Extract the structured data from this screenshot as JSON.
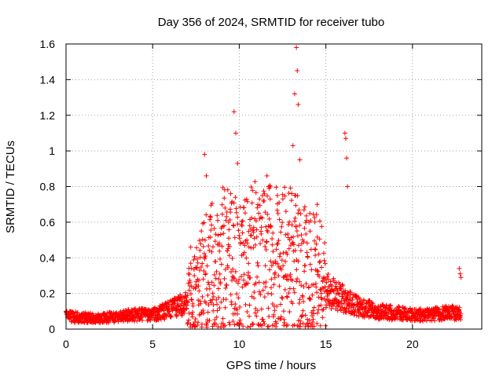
{
  "chart_data": {
    "type": "scatter",
    "title": "Day 356 of 2024, SRMTID for receiver tubo",
    "xlabel": "GPS time / hours",
    "ylabel": "SRMTID / TECUs",
    "xlim": [
      0,
      24
    ],
    "ylim": [
      0,
      1.6
    ],
    "x_ticks": [
      0,
      5,
      10,
      15,
      20
    ],
    "x_tick_labels": [
      "0",
      "5",
      "10",
      "15",
      "20"
    ],
    "y_ticks": [
      0,
      0.2,
      0.4,
      0.6,
      0.8,
      1.0,
      1.2,
      1.4,
      1.6
    ],
    "y_tick_labels": [
      "0",
      "0.2",
      "0.4",
      "0.6",
      "0.8",
      "1",
      "1.2",
      "1.4",
      "1.6"
    ],
    "grid": true,
    "marker": "+",
    "color": "#ff0000",
    "series": [
      {
        "name": "SRMTID",
        "envelope": [
          {
            "x": 0.0,
            "y": 0.07
          },
          {
            "x": 2.0,
            "y": 0.06
          },
          {
            "x": 4.0,
            "y": 0.08
          },
          {
            "x": 5.0,
            "y": 0.08
          },
          {
            "x": 6.0,
            "y": 0.11
          },
          {
            "x": 7.0,
            "y": 0.15
          },
          {
            "x": 7.5,
            "y": 0.22
          },
          {
            "x": 8.0,
            "y": 0.3
          },
          {
            "x": 9.0,
            "y": 0.4
          },
          {
            "x": 10.0,
            "y": 0.35
          },
          {
            "x": 11.0,
            "y": 0.4
          },
          {
            "x": 12.0,
            "y": 0.38
          },
          {
            "x": 13.0,
            "y": 0.38
          },
          {
            "x": 14.0,
            "y": 0.32
          },
          {
            "x": 14.7,
            "y": 0.3
          },
          {
            "x": 15.0,
            "y": 0.22
          },
          {
            "x": 16.0,
            "y": 0.17
          },
          {
            "x": 17.0,
            "y": 0.12
          },
          {
            "x": 18.0,
            "y": 0.1
          },
          {
            "x": 19.0,
            "y": 0.09
          },
          {
            "x": 20.0,
            "y": 0.08
          },
          {
            "x": 21.0,
            "y": 0.08
          },
          {
            "x": 22.0,
            "y": 0.09
          },
          {
            "x": 22.8,
            "y": 0.09
          }
        ],
        "spikes": [
          {
            "x": 8.0,
            "y": 0.98
          },
          {
            "x": 8.1,
            "y": 0.86
          },
          {
            "x": 7.2,
            "y": 0.46
          },
          {
            "x": 9.7,
            "y": 1.22
          },
          {
            "x": 9.8,
            "y": 1.1
          },
          {
            "x": 9.9,
            "y": 0.93
          },
          {
            "x": 11.6,
            "y": 0.86
          },
          {
            "x": 11.7,
            "y": 0.8
          },
          {
            "x": 12.2,
            "y": 0.75
          },
          {
            "x": 13.2,
            "y": 1.32
          },
          {
            "x": 13.3,
            "y": 1.58
          },
          {
            "x": 13.35,
            "y": 1.45
          },
          {
            "x": 13.4,
            "y": 1.26
          },
          {
            "x": 13.1,
            "y": 1.03
          },
          {
            "x": 13.5,
            "y": 0.95
          },
          {
            "x": 14.5,
            "y": 0.7
          },
          {
            "x": 16.1,
            "y": 1.1
          },
          {
            "x": 16.15,
            "y": 1.07
          },
          {
            "x": 16.2,
            "y": 0.96
          },
          {
            "x": 16.25,
            "y": 0.8
          },
          {
            "x": 22.7,
            "y": 0.34
          },
          {
            "x": 22.75,
            "y": 0.31
          },
          {
            "x": 22.8,
            "y": 0.29
          }
        ],
        "last_x": 22.8
      }
    ]
  }
}
